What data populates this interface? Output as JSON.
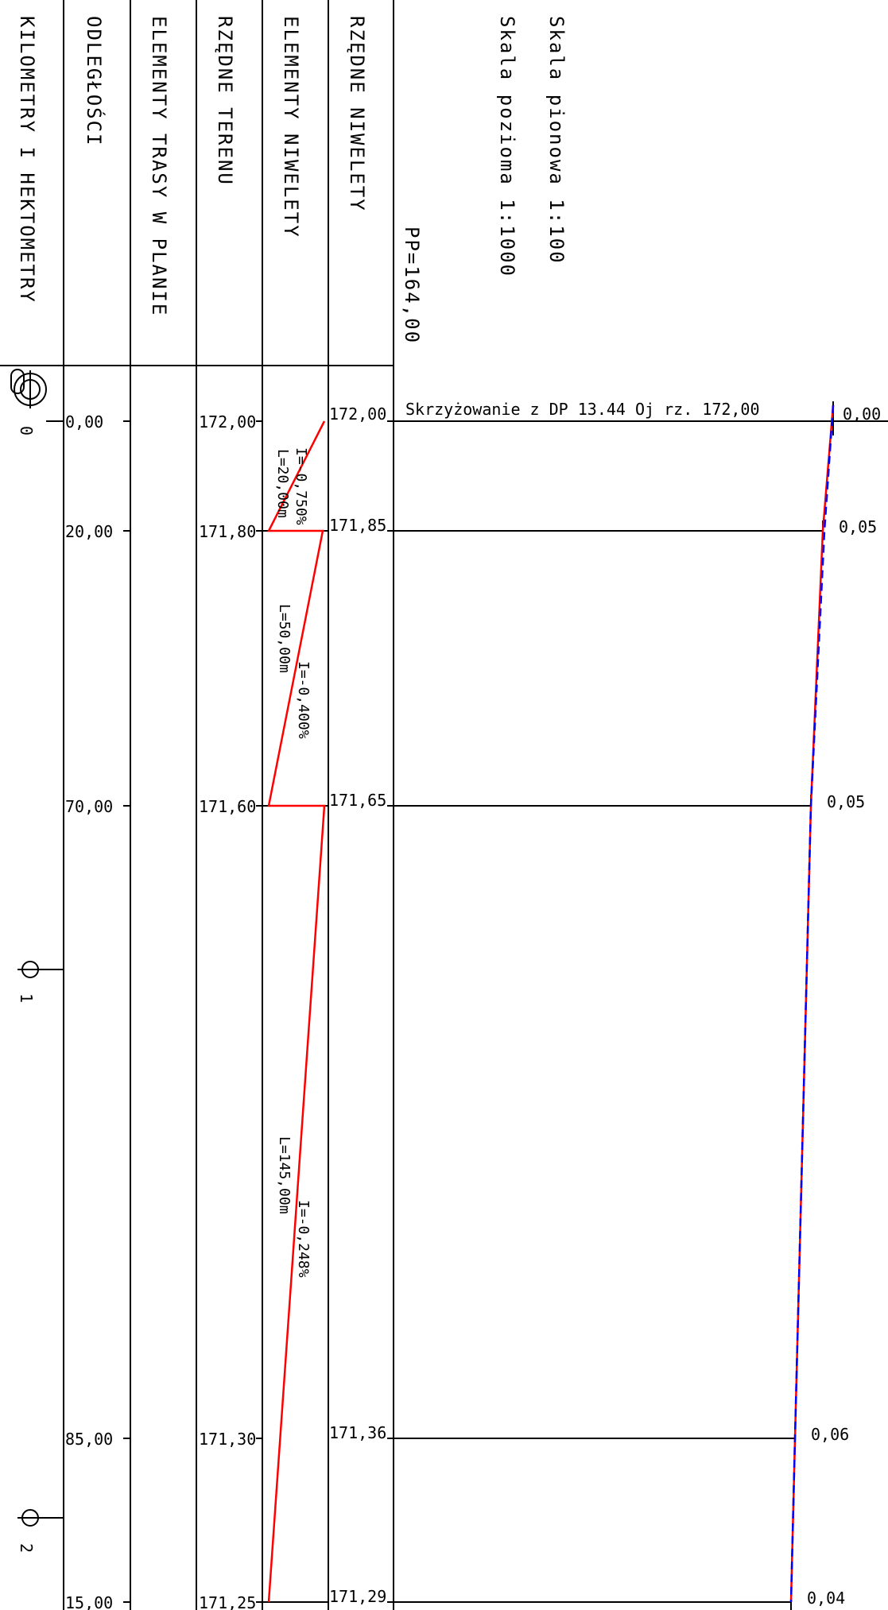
{
  "scale": {
    "vertical": "Skala pionowa 1:100",
    "horizontal": "Skala pozioma 1:1000"
  },
  "reference_level": "PP=164,00",
  "crossing_note": "Skrzyżowanie z DP 13.44 Oj rz. 172,00",
  "row_headers": {
    "km": "KILOMETRY I HEKTOMETRY",
    "distances": "ODLEGŁOŚCI",
    "plan_elements": "ELEMENTY TRASY W PLANIE",
    "terrain": "RZĘDNE TERENU",
    "grade_elements": "ELEMENTY NIWELETY",
    "grade_ordinates": "RZĘDNE NIWELETY"
  },
  "hectometer_marks": [
    "0",
    "1",
    "2"
  ],
  "stations": [
    {
      "distance": "0,00",
      "terrain": "172,00",
      "grade": "172,00",
      "depth": "0,00"
    },
    {
      "distance": "20,00",
      "terrain": "171,80",
      "grade": "171,85",
      "depth": "0,05"
    },
    {
      "distance": "70,00",
      "terrain": "171,60",
      "grade": "171,65",
      "depth": "0,05"
    },
    {
      "distance": "85,00",
      "terrain": "171,30",
      "grade": "171,36",
      "depth": "0,06"
    },
    {
      "distance": "15,00",
      "terrain": "171,25",
      "grade": "171,29",
      "depth": "0,04"
    }
  ],
  "grade_segments": [
    {
      "length": "L=20,00m",
      "slope": "I=-0,750%"
    },
    {
      "length": "L=50,00m",
      "slope": "I=-0,400%"
    },
    {
      "length": "L=145,00m",
      "slope": "I=-0,248%"
    }
  ],
  "colors": {
    "grade_line": "#ff0000",
    "terrain_line": "#0000ff",
    "ink": "#000000"
  }
}
